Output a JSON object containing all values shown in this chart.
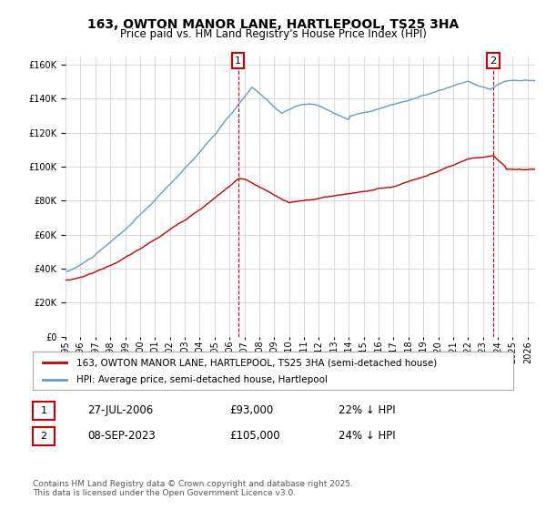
{
  "title1": "163, OWTON MANOR LANE, HARTLEPOOL, TS25 3HA",
  "title2": "Price paid vs. HM Land Registry's House Price Index (HPI)",
  "xlabel": "",
  "ylabel": "",
  "ylim": [
    0,
    165000
  ],
  "yticks": [
    0,
    20000,
    40000,
    60000,
    80000,
    100000,
    120000,
    140000,
    160000
  ],
  "ytick_labels": [
    "£0",
    "£20K",
    "£40K",
    "£60K",
    "£80K",
    "£100K",
    "£120K",
    "£140K",
    "£160K"
  ],
  "xlim_start": 1995.0,
  "xlim_end": 2026.5,
  "marker1_x": 2006.57,
  "marker1_y": 93000,
  "marker1_label": "1",
  "marker2_x": 2023.69,
  "marker2_y": 105000,
  "marker2_label": "2",
  "legend_red": "163, OWTON MANOR LANE, HARTLEPOOL, TS25 3HA (semi-detached house)",
  "legend_blue": "HPI: Average price, semi-detached house, Hartlepool",
  "table_row1": [
    "1",
    "27-JUL-2006",
    "£93,000",
    "22% ↓ HPI"
  ],
  "table_row2": [
    "2",
    "08-SEP-2023",
    "£105,000",
    "24% ↓ HPI"
  ],
  "footnote": "Contains HM Land Registry data © Crown copyright and database right 2025.\nThis data is licensed under the Open Government Licence v3.0.",
  "bg_color": "#ffffff",
  "grid_color": "#cccccc",
  "red_color": "#cc0000",
  "blue_color": "#6699cc"
}
